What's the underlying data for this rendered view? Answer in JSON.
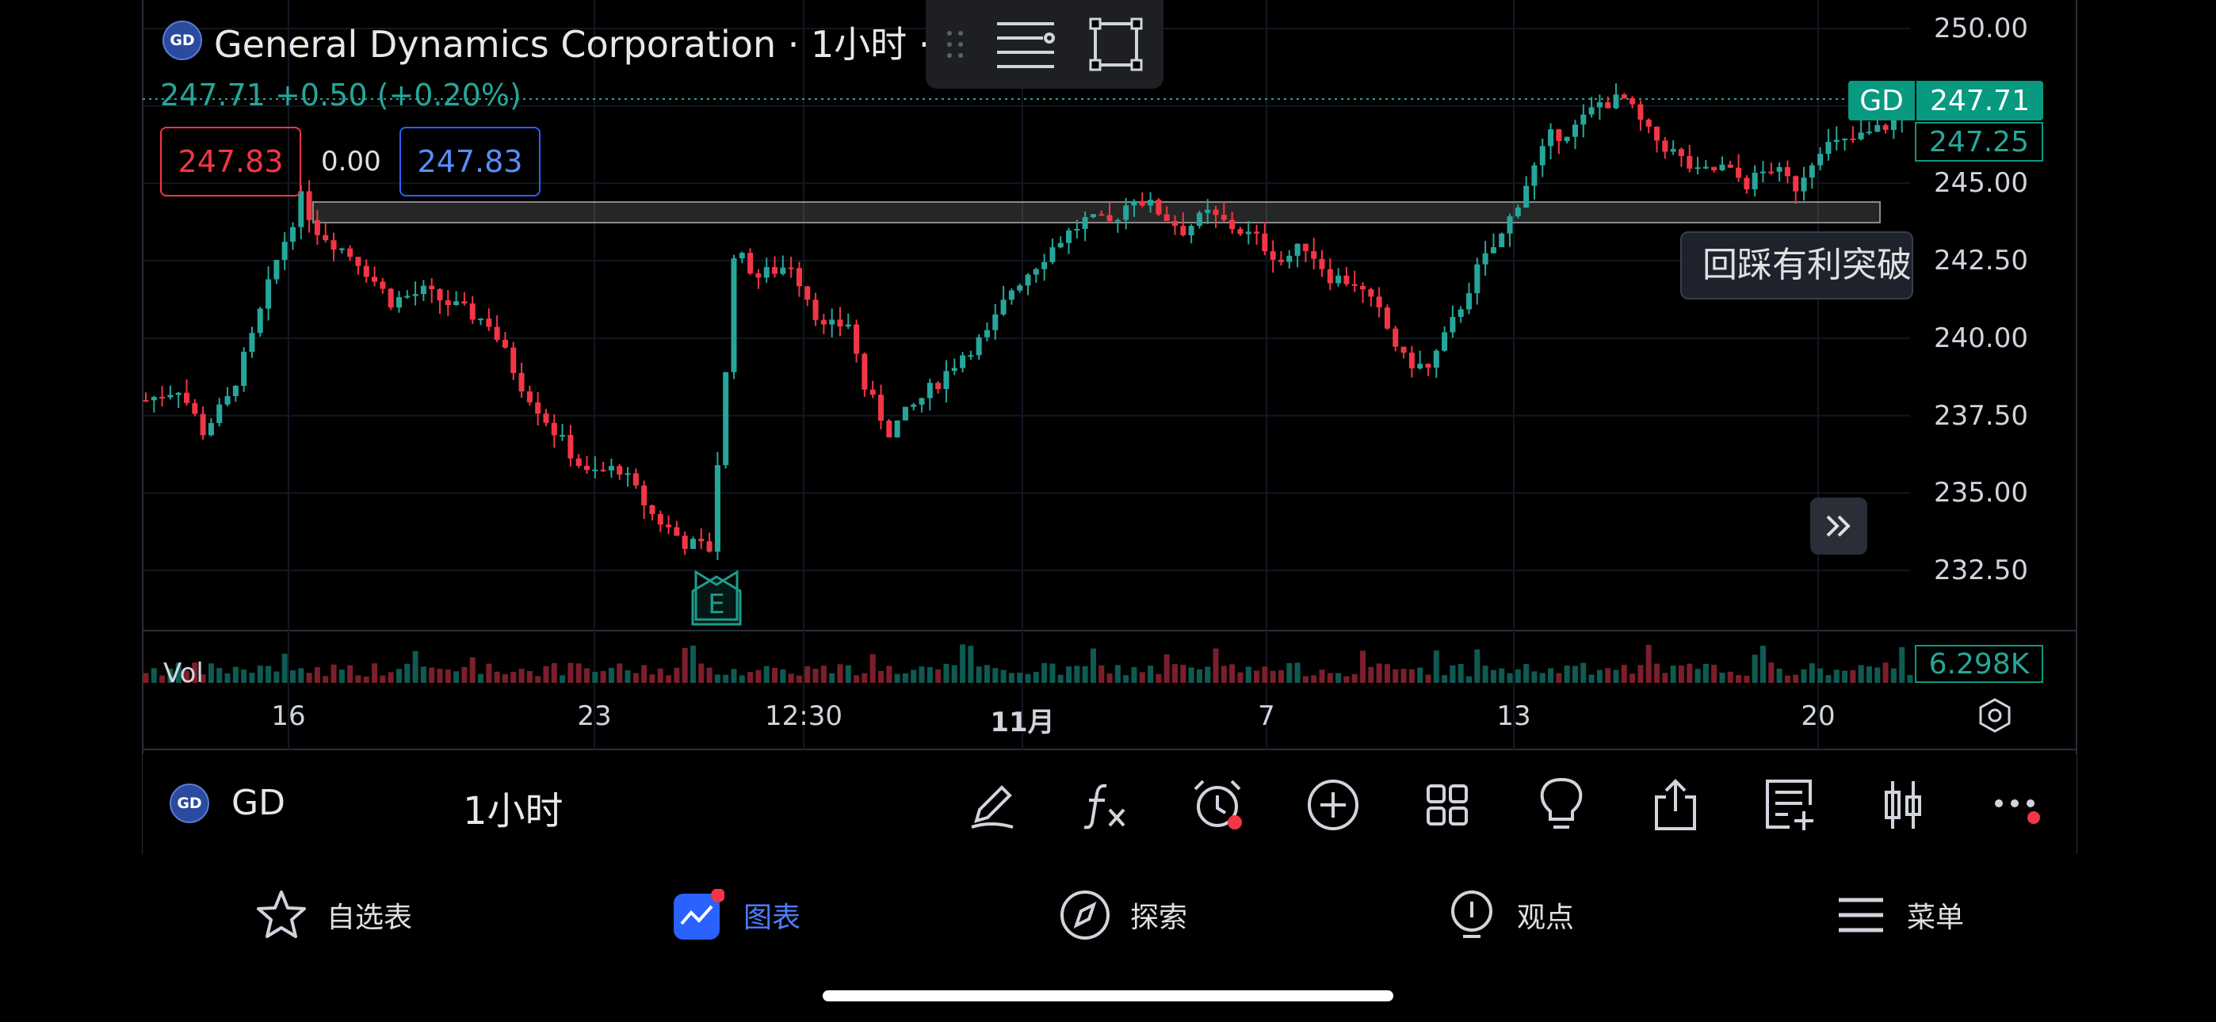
{
  "header": {
    "logo_text": "GD",
    "title": "General Dynamics Corporation · 1小时 · N",
    "price_line": "247.71 +0.50 (+0.20%)"
  },
  "order_boxes": {
    "sell": "247.83",
    "spread": "0.00",
    "buy": "247.83"
  },
  "price_axis": {
    "ticks": [
      "250.00",
      "245.00",
      "242.50",
      "240.00",
      "237.50",
      "235.00",
      "232.50"
    ],
    "last_symbol": "GD",
    "last_price": "247.71",
    "bid_price": "247.25"
  },
  "annotation": {
    "text": "回踩有利突破"
  },
  "earnings_marker": "E",
  "volume": {
    "label": "Vol",
    "value": "6.298K"
  },
  "time_axis": {
    "labels": [
      {
        "text": "16",
        "bold": false
      },
      {
        "text": "23",
        "bold": false
      },
      {
        "text": "12:30",
        "bold": false
      },
      {
        "text": "11月",
        "bold": true
      },
      {
        "text": "7",
        "bold": false
      },
      {
        "text": "13",
        "bold": false
      },
      {
        "text": "20",
        "bold": false
      }
    ]
  },
  "bottom_bar": {
    "symbol": "GD",
    "interval": "1小时",
    "tools": [
      "pen-icon",
      "formula-icon",
      "alarm-icon",
      "plus-circle-icon",
      "grid-icon",
      "lightbulb-icon",
      "share-icon",
      "notes-icon",
      "candle-icon",
      "more-icon"
    ]
  },
  "nav": [
    {
      "label": "自选表",
      "icon": "star-icon",
      "active": false
    },
    {
      "label": "图表",
      "icon": "chart-icon",
      "active": true
    },
    {
      "label": "探索",
      "icon": "compass-icon",
      "active": false
    },
    {
      "label": "观点",
      "icon": "idea-icon",
      "active": false
    },
    {
      "label": "菜单",
      "icon": "menu-icon",
      "active": false
    }
  ],
  "colors": {
    "up": "#26a69a",
    "down": "#f23645",
    "accent": "#2962ff",
    "background": "#000000"
  },
  "chart_data": {
    "type": "candlestick",
    "symbol": "GD",
    "interval": "1小时",
    "ylim": [
      231.5,
      250.5
    ],
    "y_ticks": [
      250.0,
      245.0,
      242.5,
      240.0,
      237.5,
      235.0,
      232.5
    ],
    "close_path": [
      [
        0,
        238.0
      ],
      [
        4,
        238.4
      ],
      [
        7,
        237.0
      ],
      [
        10,
        238.0
      ],
      [
        13,
        240.0
      ],
      [
        16,
        242.5
      ],
      [
        19,
        244.5
      ],
      [
        21,
        243.5
      ],
      [
        26,
        242.5
      ],
      [
        30,
        241.2
      ],
      [
        34,
        241.5
      ],
      [
        38,
        241.0
      ],
      [
        42,
        240.5
      ],
      [
        46,
        238.5
      ],
      [
        50,
        237.0
      ],
      [
        54,
        235.6
      ],
      [
        58,
        235.8
      ],
      [
        62,
        234.3
      ],
      [
        66,
        233.4
      ],
      [
        69,
        233.2
      ],
      [
        71,
        238.8
      ],
      [
        72,
        242.8
      ],
      [
        75,
        242.0
      ],
      [
        79,
        242.4
      ],
      [
        83,
        240.3
      ],
      [
        86,
        240.5
      ],
      [
        88,
        238.4
      ],
      [
        91,
        237.0
      ],
      [
        94,
        237.8
      ],
      [
        97,
        238.6
      ],
      [
        100,
        239.5
      ],
      [
        103,
        240.1
      ],
      [
        106,
        241.6
      ],
      [
        109,
        242.4
      ],
      [
        112,
        243.2
      ],
      [
        115,
        243.8
      ],
      [
        118,
        243.7
      ],
      [
        121,
        244.6
      ],
      [
        124,
        244.1
      ],
      [
        127,
        243.5
      ],
      [
        130,
        244.0
      ],
      [
        133,
        243.6
      ],
      [
        136,
        243.2
      ],
      [
        139,
        242.5
      ],
      [
        142,
        243.0
      ],
      [
        145,
        242.0
      ],
      [
        148,
        241.8
      ],
      [
        151,
        240.8
      ],
      [
        154,
        239.3
      ],
      [
        157,
        239.0
      ],
      [
        160,
        240.5
      ],
      [
        163,
        242.2
      ],
      [
        166,
        243.3
      ],
      [
        169,
        245.0
      ],
      [
        172,
        246.5
      ],
      [
        175,
        246.8
      ],
      [
        178,
        247.6
      ],
      [
        181,
        247.7
      ],
      [
        184,
        246.6
      ],
      [
        187,
        246.0
      ],
      [
        190,
        245.3
      ],
      [
        193,
        245.5
      ],
      [
        196,
        245.0
      ],
      [
        199,
        245.5
      ],
      [
        202,
        244.9
      ],
      [
        205,
        246.2
      ],
      [
        208,
        246.3
      ],
      [
        211,
        246.6
      ],
      [
        214,
        247.0
      ],
      [
        216,
        247.7
      ]
    ],
    "candle_count": 217,
    "resistance_zone": [
      243.8,
      244.6
    ],
    "last_price": 247.71,
    "bid": 247.25,
    "volume_last": "6.298K"
  }
}
